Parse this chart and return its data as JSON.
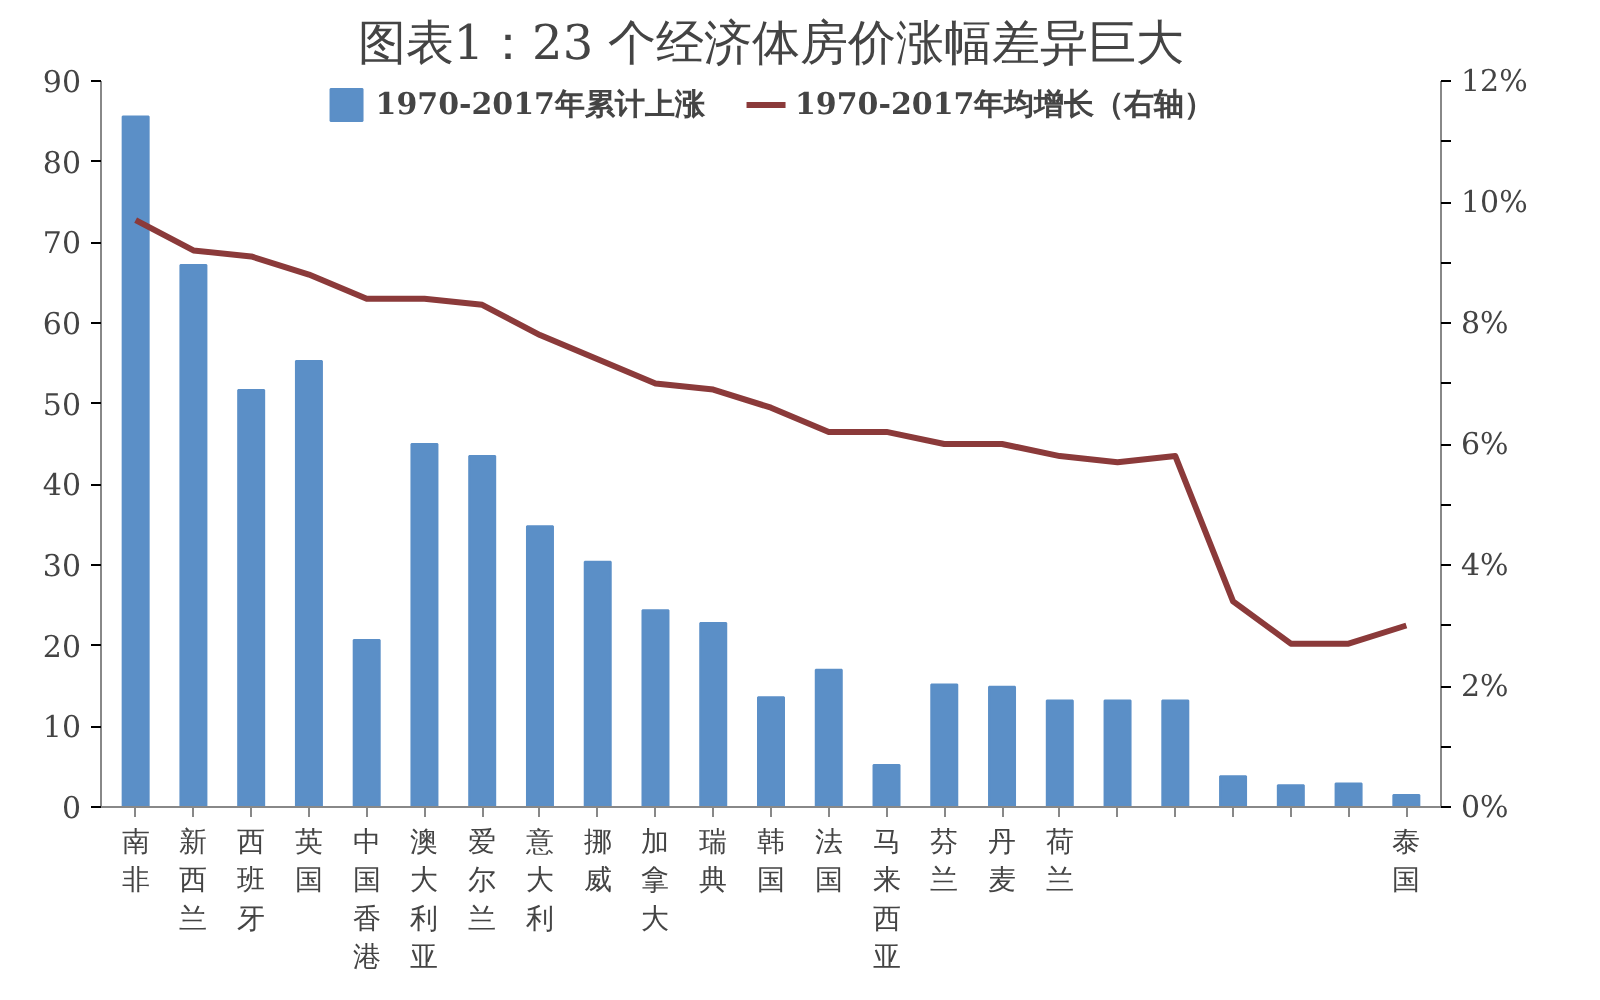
{
  "chart_data": {
    "type": "bar",
    "title": "图表1：23 个经济体房价涨幅差异巨大",
    "categories": [
      "南非",
      "新西兰",
      "西班牙",
      "英国",
      "中国香港",
      "澳大利亚",
      "爱尔兰",
      "意大利",
      "挪威",
      "加拿大",
      "瑞典",
      "韩国",
      "法国",
      "马来西亚",
      "芬兰",
      "丹麦",
      "荷兰",
      null,
      null,
      null,
      null,
      null,
      "泰国"
    ],
    "series": [
      {
        "name": "1970-2017年累计上涨",
        "color": "#5b8fc7",
        "values": [
          85.6,
          67.2,
          51.7,
          55.3,
          20.7,
          45.0,
          43.5,
          34.8,
          30.4,
          24.4,
          22.8,
          13.6,
          17.0,
          5.2,
          15.2,
          14.9,
          13.2,
          13.2,
          13.2,
          3.8,
          2.7,
          2.9,
          1.5
        ]
      },
      {
        "name": "1970-2017年均增长（右轴）",
        "type": "line",
        "axis": "y2",
        "color": "#8b3a3a",
        "values": [
          9.7,
          9.2,
          9.1,
          8.8,
          8.4,
          8.4,
          8.3,
          7.8,
          7.4,
          7.0,
          6.9,
          6.6,
          6.2,
          6.2,
          6.0,
          6.0,
          5.8,
          5.7,
          5.8,
          3.4,
          2.7,
          2.7,
          3.0
        ]
      }
    ],
    "ylim": [
      0,
      90
    ],
    "yticks": [
      0,
      10,
      20,
      30,
      40,
      50,
      60,
      70,
      80,
      90
    ],
    "y2lim": [
      0,
      12
    ],
    "y2ticks": [
      {
        "value": 0,
        "label": "0%"
      },
      {
        "value": 1,
        "label": null
      },
      {
        "value": 2,
        "label": "2%"
      },
      {
        "value": 3,
        "label": null
      },
      {
        "value": 4,
        "label": "4%"
      },
      {
        "value": 5,
        "label": null
      },
      {
        "value": 6,
        "label": "6%"
      },
      {
        "value": 7,
        "label": null
      },
      {
        "value": 8,
        "label": "8%"
      },
      {
        "value": 9,
        "label": null
      },
      {
        "value": 10,
        "label": "10%"
      },
      {
        "value": 11,
        "label": null
      },
      {
        "value": 12,
        "label": "12%"
      }
    ],
    "legend": "top",
    "grid": false
  }
}
